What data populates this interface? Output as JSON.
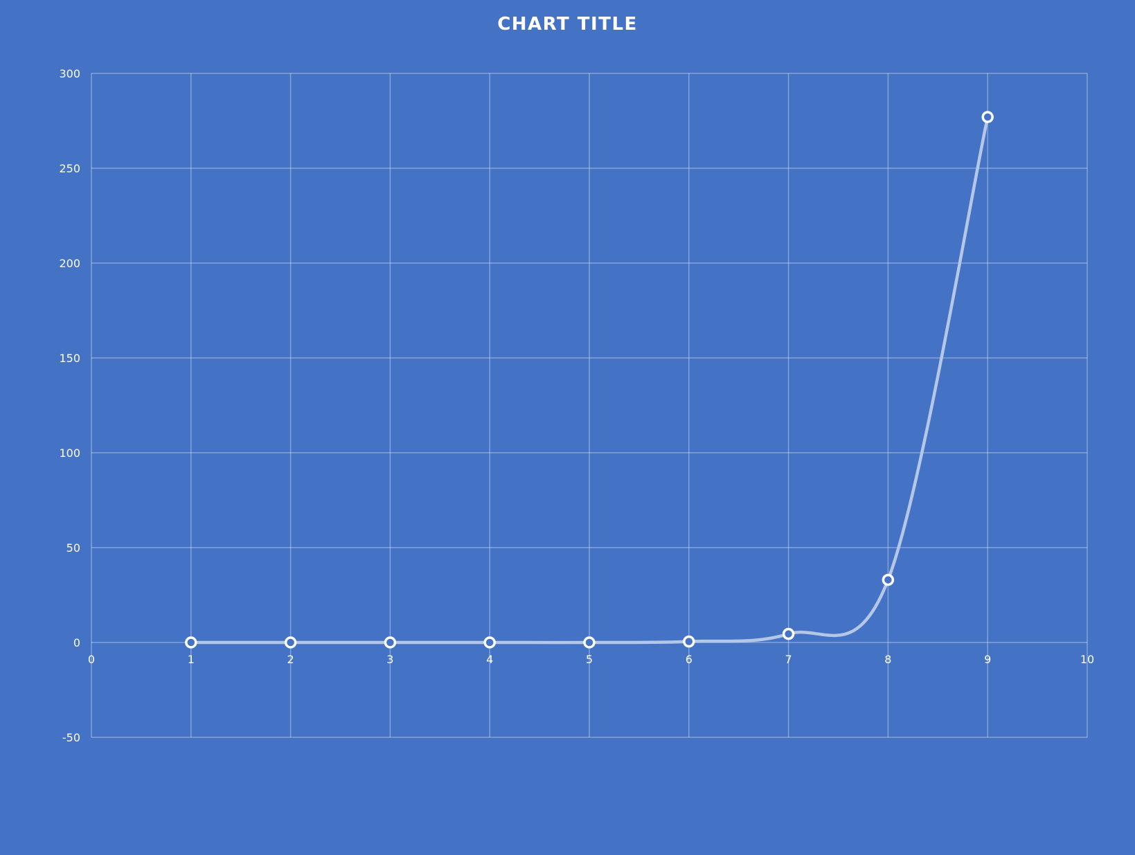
{
  "chart_data": {
    "type": "scatter",
    "title": "CHART TITLE",
    "xlabel": "",
    "ylabel": "",
    "xlim": [
      0,
      10
    ],
    "ylim": [
      -50,
      300
    ],
    "x_ticks": [
      0,
      1,
      2,
      3,
      4,
      5,
      6,
      7,
      8,
      9,
      10
    ],
    "y_ticks": [
      -50,
      0,
      50,
      100,
      150,
      200,
      250,
      300
    ],
    "grid": true,
    "smooth_line": true,
    "legend": "none",
    "series": [
      {
        "x": [
          1,
          2,
          3,
          4,
          5,
          6,
          7,
          8,
          9
        ],
        "y": [
          0,
          0,
          0,
          0,
          0,
          0.5,
          4.5,
          33,
          277
        ]
      }
    ],
    "colors": {
      "background": "#4472C4",
      "line": "#B4C7E7",
      "marker_fill": "#4472C4",
      "marker_stroke": "#FFFFFF",
      "grid": "#FFFFFF",
      "text": "#FFFFFF"
    }
  }
}
